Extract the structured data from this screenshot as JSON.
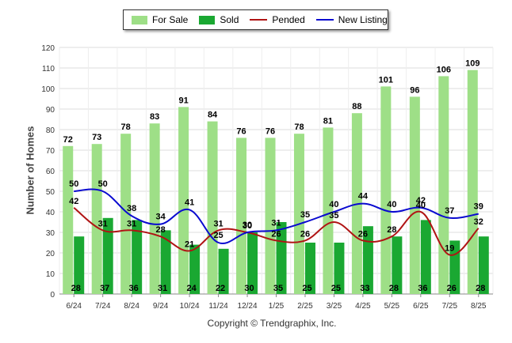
{
  "chart_data": {
    "type": "bar",
    "categories": [
      "6/24",
      "7/24",
      "8/24",
      "9/24",
      "10/24",
      "11/24",
      "12/24",
      "1/25",
      "2/25",
      "3/25",
      "4/25",
      "5/25",
      "6/25",
      "7/25",
      "8/25"
    ],
    "series": [
      {
        "name": "For Sale",
        "type": "bar",
        "color": "#9edf87",
        "values": [
          72,
          73,
          78,
          83,
          91,
          84,
          76,
          76,
          78,
          81,
          88,
          101,
          96,
          106,
          109
        ]
      },
      {
        "name": "Sold",
        "type": "bar",
        "color": "#1aa832",
        "values": [
          28,
          37,
          36,
          31,
          24,
          22,
          30,
          35,
          25,
          25,
          33,
          28,
          36,
          26,
          28
        ]
      },
      {
        "name": "Pended",
        "type": "line",
        "color": "#b01414",
        "values": [
          42,
          31,
          31,
          28,
          21,
          31,
          30,
          26,
          26,
          35,
          26,
          28,
          40,
          19,
          32
        ]
      },
      {
        "name": "New Listing",
        "type": "line",
        "color": "#0a0ad0",
        "values": [
          50,
          50,
          38,
          34,
          41,
          25,
          30,
          31,
          35,
          40,
          44,
          40,
          42,
          37,
          39
        ]
      }
    ],
    "ylabel": "Number of Homes",
    "xlabel": "",
    "ylim": [
      0,
      120
    ],
    "yticks": [
      0,
      10,
      20,
      30,
      40,
      50,
      60,
      70,
      80,
      90,
      100,
      110,
      120
    ],
    "grid": true,
    "legend_position": "top-center"
  },
  "legend": {
    "for_sale": "For Sale",
    "sold": "Sold",
    "pended": "Pended",
    "new_listing": "New Listing"
  },
  "copyright": "Copyright © Trendgraphix, Inc."
}
